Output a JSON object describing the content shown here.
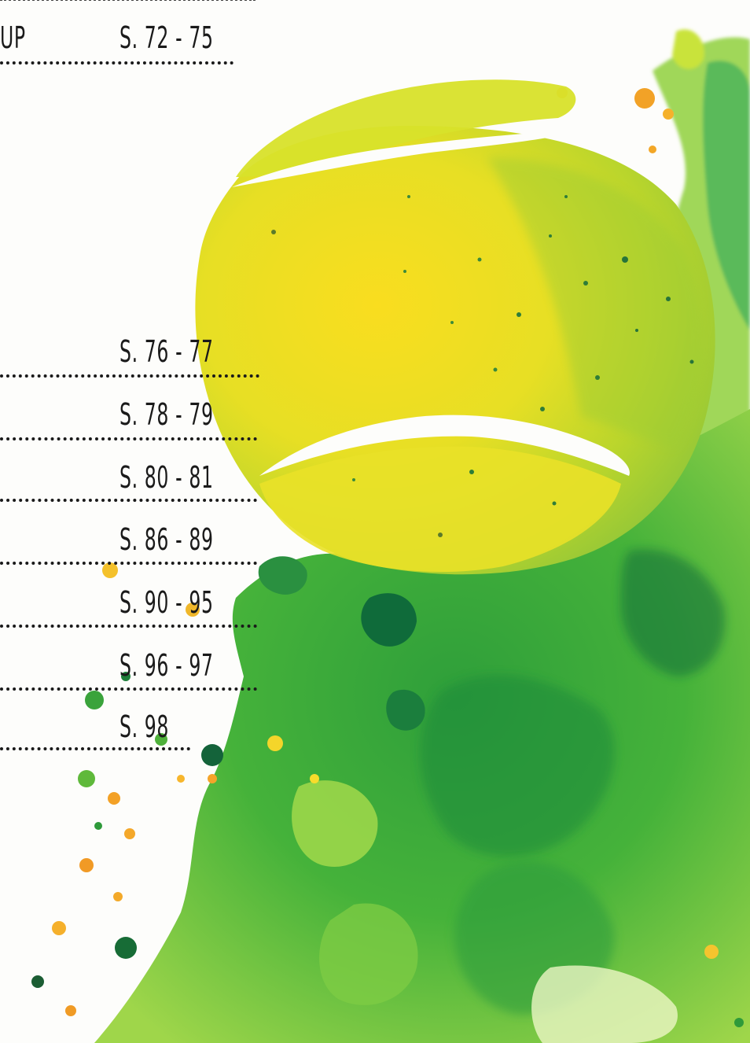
{
  "toc": {
    "first_entry_fragment": "UP",
    "entries": [
      {
        "pages": "S. 72 - 75"
      },
      {
        "pages": "S. 76 - 77"
      },
      {
        "pages": "S. 78 - 79"
      },
      {
        "pages": "S. 80 - 81"
      },
      {
        "pages": "S. 86 - 89"
      },
      {
        "pages": "S. 90 - 95"
      },
      {
        "pages": "S. 96 - 97"
      },
      {
        "pages": "S. 98"
      }
    ]
  },
  "illustration": {
    "subject": "tennis-ball-watercolor-icon",
    "colors": {
      "ball_yellow": "#f6d81a",
      "ball_lime": "#b8d62a",
      "splash_green": "#3aa635",
      "splash_dark": "#12703a",
      "accent_orange": "#f2a227"
    }
  }
}
